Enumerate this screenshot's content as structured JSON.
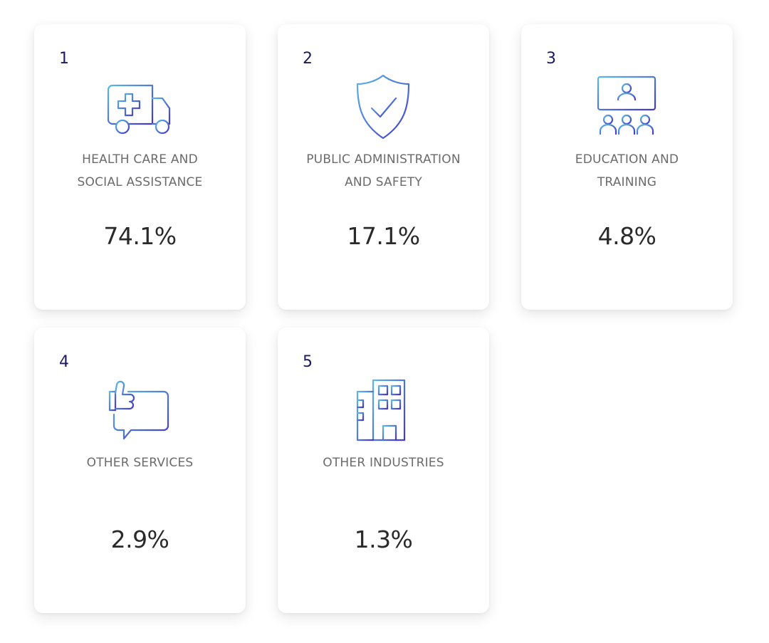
{
  "industries": [
    {
      "rank": "1",
      "label_line1": "HEALTH CARE AND",
      "label_line2": "SOCIAL ASSISTANCE",
      "percent": "74.1%",
      "icon": "ambulance-icon"
    },
    {
      "rank": "2",
      "label_line1": "PUBLIC ADMINISTRATION",
      "label_line2": "AND SAFETY",
      "percent": "17.1%",
      "icon": "shield-check-icon"
    },
    {
      "rank": "3",
      "label_line1": "EDUCATION AND",
      "label_line2": "TRAINING",
      "percent": "4.8%",
      "icon": "classroom-icon"
    },
    {
      "rank": "4",
      "label_line1": "OTHER SERVICES",
      "label_line2": "",
      "percent": "2.9%",
      "icon": "thumbs-up-chat-icon"
    },
    {
      "rank": "5",
      "label_line1": "OTHER INDUSTRIES",
      "label_line2": "",
      "percent": "1.3%",
      "icon": "building-icon"
    }
  ],
  "colors": {
    "rank": "#1c1a60",
    "label": "#6b6b6b",
    "value": "#2a2a2a",
    "icon_gradient_start": "#5ab8e6",
    "icon_gradient_end": "#4438c9"
  }
}
